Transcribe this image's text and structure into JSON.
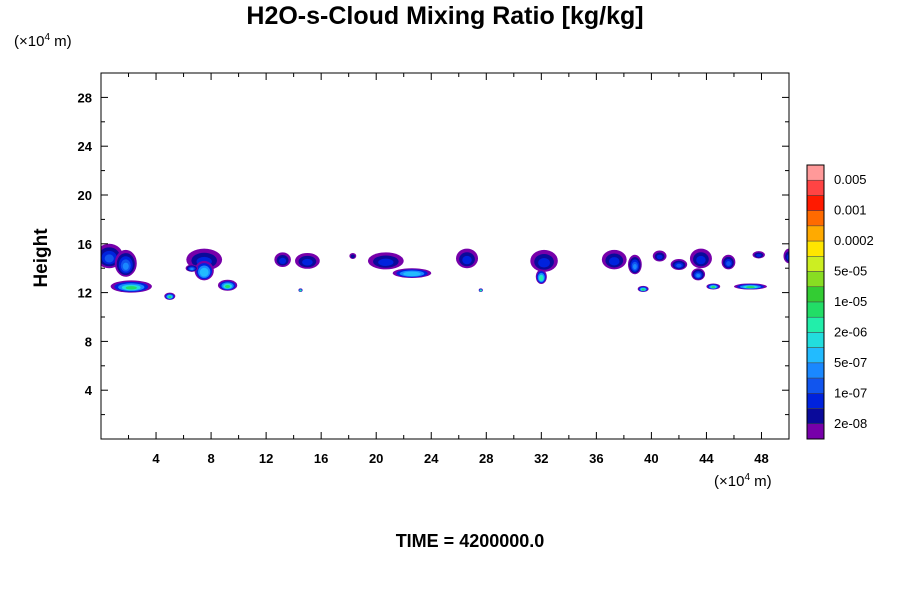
{
  "chart_data": {
    "type": "heatmap",
    "title": "H2O-s-Cloud Mixing Ratio [kg/kg]",
    "ylabel": "Height",
    "xlabel": "",
    "x_unit_prefix": "(×10",
    "x_unit_exp": "4",
    "x_unit_suffix": " m)",
    "y_unit_prefix": "(×10",
    "y_unit_exp": "4",
    "y_unit_suffix": " m)",
    "xlim": [
      0,
      50
    ],
    "ylim": [
      0,
      30
    ],
    "x_ticks": [
      4,
      8,
      12,
      16,
      20,
      24,
      28,
      32,
      36,
      40,
      44,
      48
    ],
    "y_ticks": [
      4,
      8,
      12,
      16,
      20,
      24,
      28
    ],
    "grid": false,
    "time_label": "TIME = 4200000.0",
    "colorbar": {
      "labels": [
        "0.005",
        "0.001",
        "0.0002",
        "5e-05",
        "1e-05",
        "2e-06",
        "5e-07",
        "1e-07",
        "2e-08"
      ],
      "colors": [
        "#ff9999",
        "#ff4444",
        "#ff1a00",
        "#ff6a00",
        "#ffaa00",
        "#ffe600",
        "#ccee22",
        "#88dd22",
        "#33cc33",
        "#22dd66",
        "#22eeaa",
        "#22dddd",
        "#22bbff",
        "#1a88ff",
        "#1155ee",
        "#0022dd",
        "#0a0a9a",
        "#7700aa"
      ]
    },
    "clouds": [
      {
        "x": 0.6,
        "y": 15.0,
        "w": 2.0,
        "h": 2.0,
        "level": 14
      },
      {
        "x": 1.8,
        "y": 14.4,
        "w": 1.6,
        "h": 2.2,
        "level": 13
      },
      {
        "x": 2.2,
        "y": 12.5,
        "w": 3.0,
        "h": 1.0,
        "level": 9
      },
      {
        "x": 5.0,
        "y": 11.7,
        "w": 0.8,
        "h": 0.6,
        "level": 9
      },
      {
        "x": 7.5,
        "y": 14.7,
        "w": 2.6,
        "h": 1.8,
        "level": 15
      },
      {
        "x": 7.5,
        "y": 13.8,
        "w": 1.4,
        "h": 1.6,
        "level": 12
      },
      {
        "x": 6.6,
        "y": 14.0,
        "w": 0.9,
        "h": 0.6,
        "level": 13
      },
      {
        "x": 9.2,
        "y": 12.6,
        "w": 1.4,
        "h": 0.9,
        "level": 9
      },
      {
        "x": 13.2,
        "y": 14.7,
        "w": 1.2,
        "h": 1.2,
        "level": 15
      },
      {
        "x": 15.0,
        "y": 14.6,
        "w": 1.8,
        "h": 1.3,
        "level": 15
      },
      {
        "x": 18.3,
        "y": 15.0,
        "w": 0.5,
        "h": 0.5,
        "level": 16
      },
      {
        "x": 20.7,
        "y": 14.6,
        "w": 2.6,
        "h": 1.4,
        "level": 15
      },
      {
        "x": 22.6,
        "y": 13.6,
        "w": 2.8,
        "h": 0.8,
        "level": 12
      },
      {
        "x": 26.6,
        "y": 14.8,
        "w": 1.6,
        "h": 1.6,
        "level": 15
      },
      {
        "x": 32.2,
        "y": 14.6,
        "w": 2.0,
        "h": 1.8,
        "level": 15
      },
      {
        "x": 32.0,
        "y": 13.3,
        "w": 0.8,
        "h": 1.2,
        "level": 10
      },
      {
        "x": 37.3,
        "y": 14.7,
        "w": 1.8,
        "h": 1.6,
        "level": 15
      },
      {
        "x": 38.8,
        "y": 14.3,
        "w": 1.0,
        "h": 1.6,
        "level": 13
      },
      {
        "x": 40.6,
        "y": 15.0,
        "w": 1.0,
        "h": 0.9,
        "level": 15
      },
      {
        "x": 42.0,
        "y": 14.3,
        "w": 1.2,
        "h": 0.9,
        "level": 14
      },
      {
        "x": 43.6,
        "y": 14.8,
        "w": 1.6,
        "h": 1.6,
        "level": 15
      },
      {
        "x": 43.4,
        "y": 13.5,
        "w": 1.0,
        "h": 1.0,
        "level": 13
      },
      {
        "x": 45.6,
        "y": 14.5,
        "w": 1.0,
        "h": 1.2,
        "level": 14
      },
      {
        "x": 47.8,
        "y": 15.1,
        "w": 0.9,
        "h": 0.6,
        "level": 15
      },
      {
        "x": 50.0,
        "y": 15.0,
        "w": 0.8,
        "h": 1.2,
        "level": 15
      },
      {
        "x": 44.5,
        "y": 12.5,
        "w": 1.0,
        "h": 0.5,
        "level": 9
      },
      {
        "x": 47.2,
        "y": 12.5,
        "w": 2.4,
        "h": 0.5,
        "level": 9
      },
      {
        "x": 39.4,
        "y": 12.3,
        "w": 0.8,
        "h": 0.5,
        "level": 9
      },
      {
        "x": 14.5,
        "y": 12.2,
        "w": 0.3,
        "h": 0.3,
        "level": 10
      },
      {
        "x": 27.6,
        "y": 12.2,
        "w": 0.3,
        "h": 0.3,
        "level": 10
      }
    ]
  }
}
